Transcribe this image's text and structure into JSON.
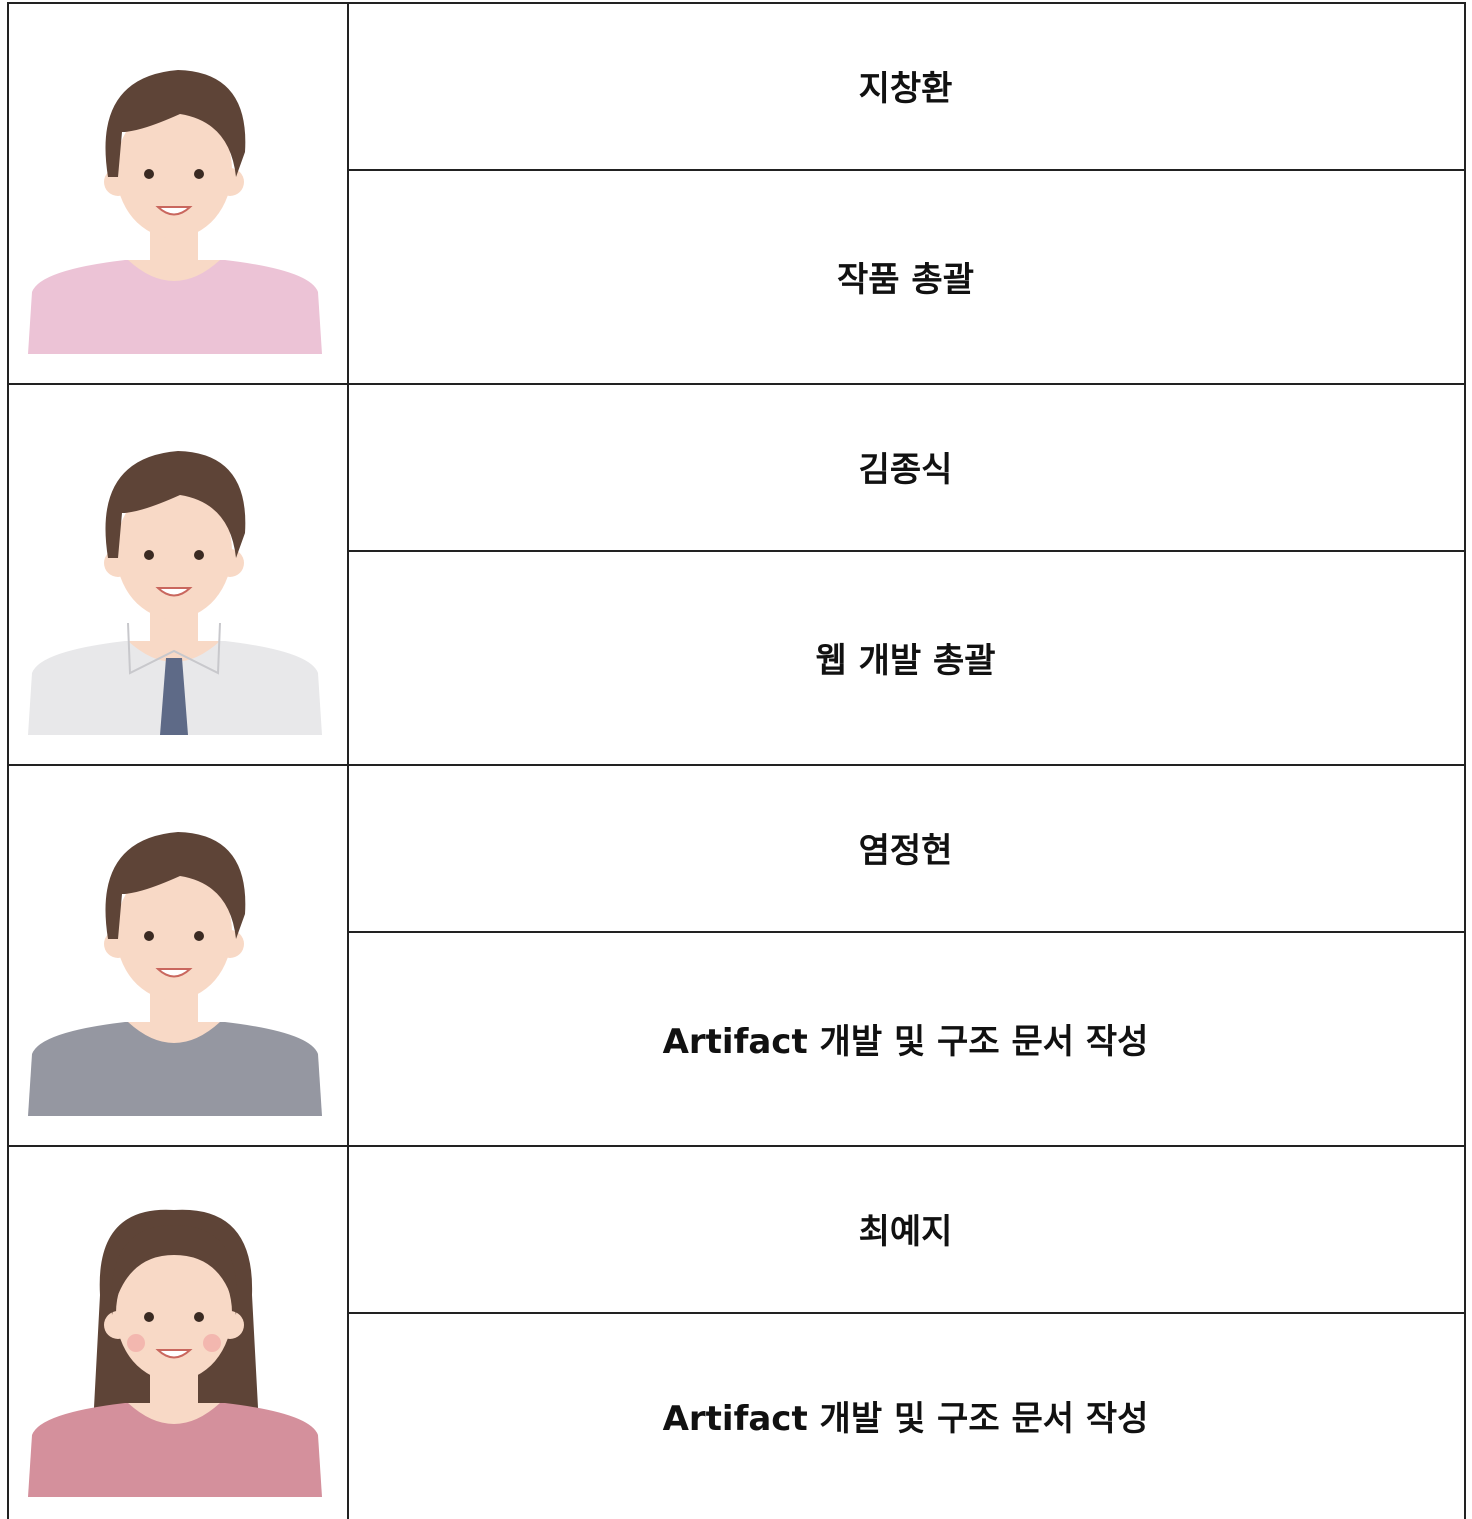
{
  "members": [
    {
      "name": "지창환",
      "role": "작품 총괄"
    },
    {
      "name": "김종식",
      "role": "웹 개발 총괄"
    },
    {
      "name": "염정현",
      "role": "Artifact 개발 및 구조 문서 작성"
    },
    {
      "name": "최예지",
      "role": "Artifact 개발 및 구조 문서 작성"
    }
  ]
}
